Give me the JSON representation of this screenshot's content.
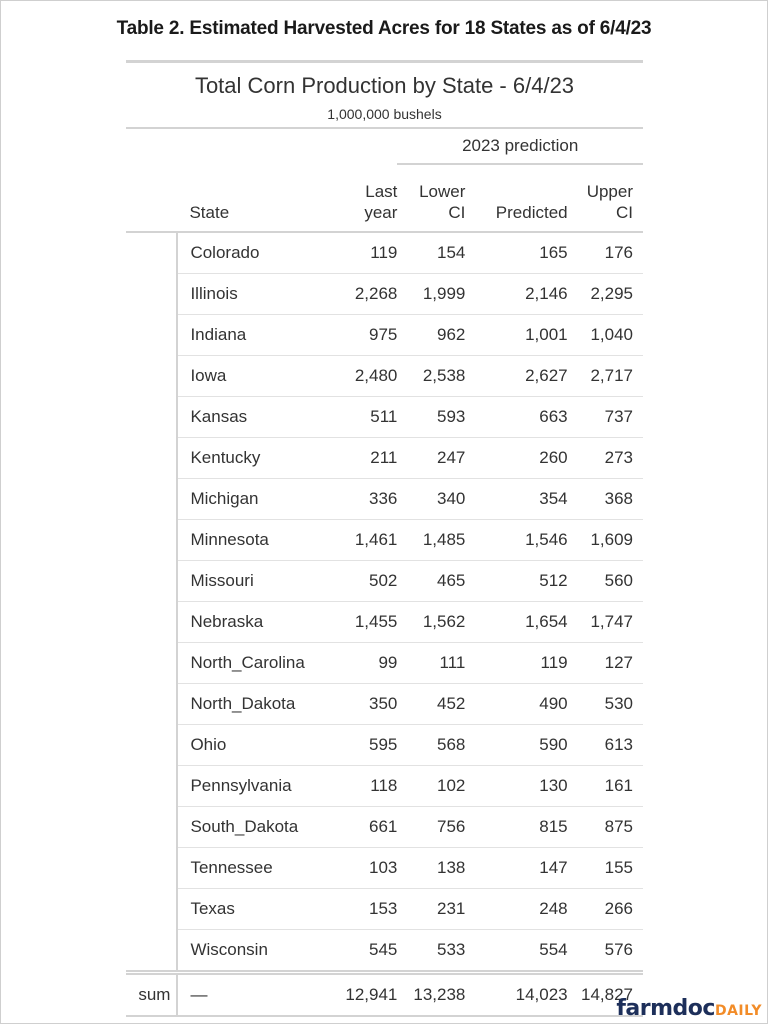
{
  "caption": "Table 2.  Estimated Harvested Acres for 18 States as of 6/4/23",
  "table": {
    "title": "Total Corn Production by State - 6/4/23",
    "subtitle": "1,000,000 bushels",
    "spanner": "2023 prediction",
    "columns": {
      "state": "State",
      "last_year_1": "Last",
      "last_year_2": "year",
      "lower_ci_1": "Lower",
      "lower_ci_2": "CI",
      "predicted": "Predicted",
      "upper_ci_1": "Upper",
      "upper_ci_2": "CI"
    },
    "rows": [
      {
        "state": "Colorado",
        "last_year": "119",
        "lower_ci": "154",
        "predicted": "165",
        "upper_ci": "176"
      },
      {
        "state": "Illinois",
        "last_year": "2,268",
        "lower_ci": "1,999",
        "predicted": "2,146",
        "upper_ci": "2,295"
      },
      {
        "state": "Indiana",
        "last_year": "975",
        "lower_ci": "962",
        "predicted": "1,001",
        "upper_ci": "1,040"
      },
      {
        "state": "Iowa",
        "last_year": "2,480",
        "lower_ci": "2,538",
        "predicted": "2,627",
        "upper_ci": "2,717"
      },
      {
        "state": "Kansas",
        "last_year": "511",
        "lower_ci": "593",
        "predicted": "663",
        "upper_ci": "737"
      },
      {
        "state": "Kentucky",
        "last_year": "211",
        "lower_ci": "247",
        "predicted": "260",
        "upper_ci": "273"
      },
      {
        "state": "Michigan",
        "last_year": "336",
        "lower_ci": "340",
        "predicted": "354",
        "upper_ci": "368"
      },
      {
        "state": "Minnesota",
        "last_year": "1,461",
        "lower_ci": "1,485",
        "predicted": "1,546",
        "upper_ci": "1,609"
      },
      {
        "state": "Missouri",
        "last_year": "502",
        "lower_ci": "465",
        "predicted": "512",
        "upper_ci": "560"
      },
      {
        "state": "Nebraska",
        "last_year": "1,455",
        "lower_ci": "1,562",
        "predicted": "1,654",
        "upper_ci": "1,747"
      },
      {
        "state": "North_Carolina",
        "last_year": "99",
        "lower_ci": "111",
        "predicted": "119",
        "upper_ci": "127"
      },
      {
        "state": "North_Dakota",
        "last_year": "350",
        "lower_ci": "452",
        "predicted": "490",
        "upper_ci": "530"
      },
      {
        "state": "Ohio",
        "last_year": "595",
        "lower_ci": "568",
        "predicted": "590",
        "upper_ci": "613"
      },
      {
        "state": "Pennsylvania",
        "last_year": "118",
        "lower_ci": "102",
        "predicted": "130",
        "upper_ci": "161"
      },
      {
        "state": "South_Dakota",
        "last_year": "661",
        "lower_ci": "756",
        "predicted": "815",
        "upper_ci": "875"
      },
      {
        "state": "Tennessee",
        "last_year": "103",
        "lower_ci": "138",
        "predicted": "147",
        "upper_ci": "155"
      },
      {
        "state": "Texas",
        "last_year": "153",
        "lower_ci": "231",
        "predicted": "248",
        "upper_ci": "266"
      },
      {
        "state": "Wisconsin",
        "last_year": "545",
        "lower_ci": "533",
        "predicted": "554",
        "upper_ci": "576"
      }
    ],
    "summary": {
      "label": "sum",
      "state": "—",
      "last_year": "12,941",
      "lower_ci": "13,238",
      "predicted": "14,023",
      "upper_ci": "14,827"
    }
  },
  "logo": {
    "main": "farmdoc",
    "accent": "DAILY",
    "main_color": "#1d2f5a",
    "accent_color": "#f28c28"
  }
}
